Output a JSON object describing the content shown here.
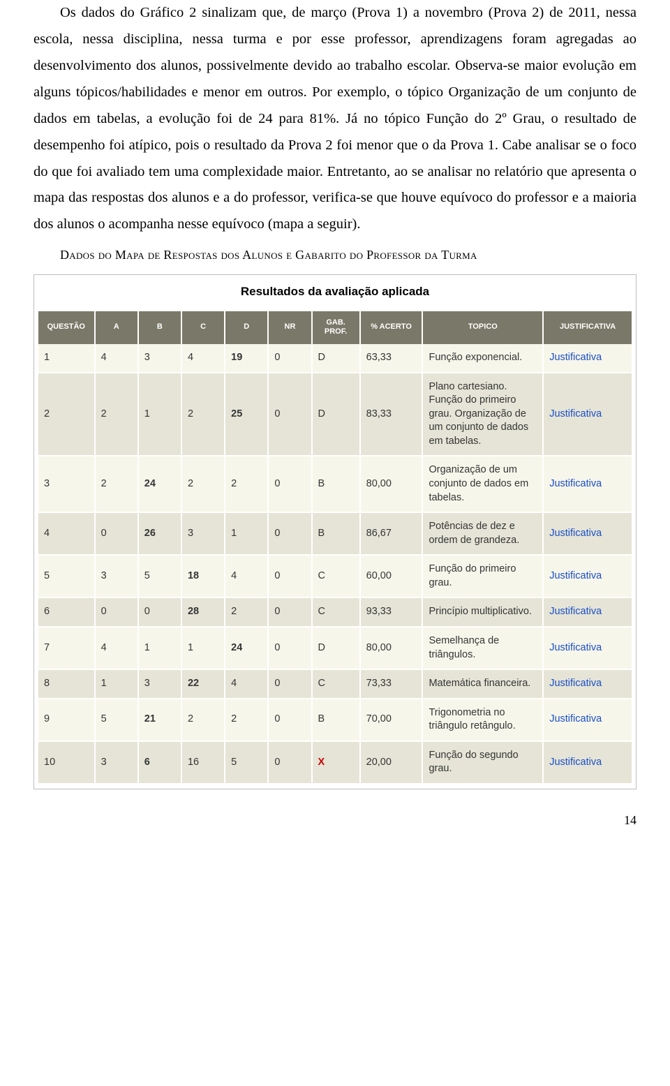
{
  "paragraph1": "Os dados do Gráfico 2 sinalizam que, de março (Prova 1) a novembro (Prova 2) de 2011, nessa escola, nessa disciplina, nessa turma e por esse professor, aprendizagens foram agregadas ao desenvolvimento dos alunos, possivelmente devido ao trabalho escolar. Observa-se maior evolução em alguns tópicos/habilidades e menor em outros. Por exemplo, o tópico Organização de um conjunto de dados em tabelas, a evolução foi de 24 para 81%. Já no tópico Função do 2º Grau, o resultado de desempenho foi atípico, pois o resultado da Prova 2 foi menor que o da Prova 1. Cabe analisar se o foco do que foi avaliado tem uma complexidade maior. Entretanto, ao se analisar no relatório que apresenta o mapa das respostas dos alunos e a do professor, verifica-se que houve equívoco do professor e a maioria dos alunos o acompanha nesse equívoco (mapa a seguir).",
  "caption": "Dados do Mapa de Respostas dos Alunos e Gabarito do Professor da Turma",
  "table": {
    "title": "Resultados da avaliação aplicada",
    "headers": [
      "QUESTÃO",
      "A",
      "B",
      "C",
      "D",
      "NR",
      "GAB. PROF.",
      "% ACERTO",
      "TOPICO",
      "JUSTIFICATIVA"
    ],
    "justif_label": "Justificativa",
    "rows": [
      {
        "q": "1",
        "a": "4",
        "b": "3",
        "c": "4",
        "d": "19",
        "nr": "0",
        "gab": "D",
        "pct": "63,33",
        "topic": "Função exponencial.",
        "bold_col": "d"
      },
      {
        "q": "2",
        "a": "2",
        "b": "1",
        "c": "2",
        "d": "25",
        "nr": "0",
        "gab": "D",
        "pct": "83,33",
        "topic": "Plano cartesiano. Função do primeiro grau. Organização de um conjunto de dados em tabelas.",
        "bold_col": "d"
      },
      {
        "q": "3",
        "a": "2",
        "b": "24",
        "c": "2",
        "d": "2",
        "nr": "0",
        "gab": "B",
        "pct": "80,00",
        "topic": "Organização de um conjunto de dados em tabelas.",
        "bold_col": "b"
      },
      {
        "q": "4",
        "a": "0",
        "b": "26",
        "c": "3",
        "d": "1",
        "nr": "0",
        "gab": "B",
        "pct": "86,67",
        "topic": "Potências de dez e ordem de grandeza.",
        "bold_col": "b"
      },
      {
        "q": "5",
        "a": "3",
        "b": "5",
        "c": "18",
        "d": "4",
        "nr": "0",
        "gab": "C",
        "pct": "60,00",
        "topic": "Função do primeiro grau.",
        "bold_col": "c"
      },
      {
        "q": "6",
        "a": "0",
        "b": "0",
        "c": "28",
        "d": "2",
        "nr": "0",
        "gab": "C",
        "pct": "93,33",
        "topic": "Princípio multiplicativo.",
        "bold_col": "c"
      },
      {
        "q": "7",
        "a": "4",
        "b": "1",
        "c": "1",
        "d": "24",
        "nr": "0",
        "gab": "D",
        "pct": "80,00",
        "topic": "Semelhança de triângulos.",
        "bold_col": "d"
      },
      {
        "q": "8",
        "a": "1",
        "b": "3",
        "c": "22",
        "d": "4",
        "nr": "0",
        "gab": "C",
        "pct": "73,33",
        "topic": "Matemática financeira.",
        "bold_col": "c"
      },
      {
        "q": "9",
        "a": "5",
        "b": "21",
        "c": "2",
        "d": "2",
        "nr": "0",
        "gab": "B",
        "pct": "70,00",
        "topic": "Trigonometria no triângulo retângulo.",
        "bold_col": "b"
      },
      {
        "q": "10",
        "a": "3",
        "b": "6",
        "c": "16",
        "d": "5",
        "nr": "0",
        "gab": "X",
        "pct": "20,00",
        "topic": "Função do segundo grau.",
        "bold_col": "b",
        "gab_x": true
      }
    ]
  },
  "page_number": "14"
}
